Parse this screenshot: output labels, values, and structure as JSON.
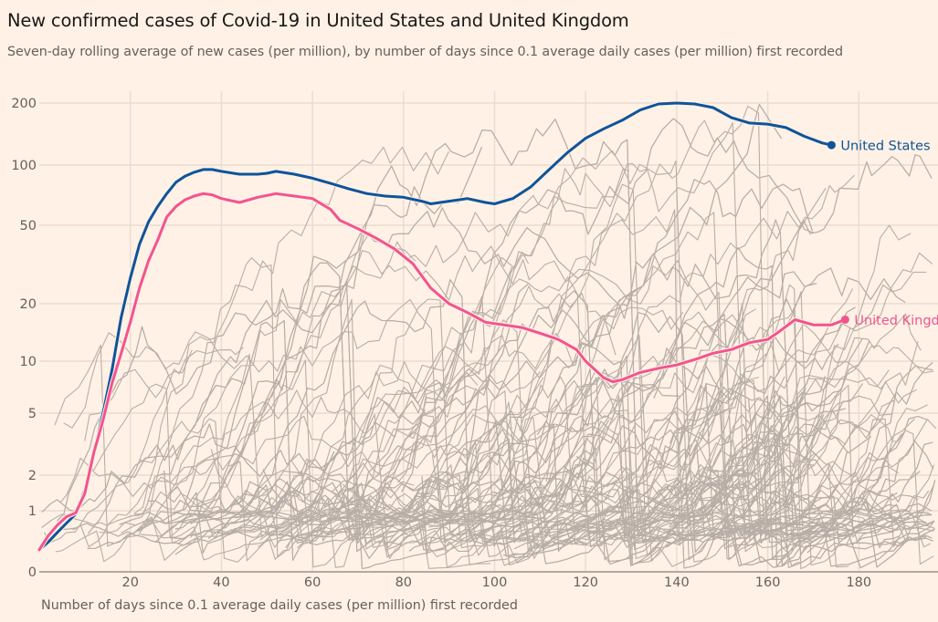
{
  "header": {
    "title": "New confirmed cases of Covid-19 in United States and United Kingdom",
    "subtitle": "Seven-day rolling average of new cases (per million), by number of days since 0.1 average daily cases (per million) first recorded"
  },
  "chart_data": {
    "type": "line",
    "title": "New confirmed cases of Covid-19 in United States and United Kingdom",
    "subtitle": "Seven-day rolling average of new cases (per million), by number of days since 0.1 average daily cases (per million) first recorded",
    "xlabel": "Number of days since 0.1 average daily cases (per million) first recorded",
    "ylabel": "",
    "y_scale": "log (with 0 at baseline)",
    "x_ticks": [
      20,
      40,
      60,
      80,
      100,
      120,
      140,
      160,
      180
    ],
    "y_ticks": [
      {
        "value": 0,
        "label": "0"
      },
      {
        "value": 1,
        "label": "1"
      },
      {
        "value": 2,
        "label": "2"
      },
      {
        "value": 5,
        "label": "5"
      },
      {
        "value": 10,
        "label": "10"
      },
      {
        "value": 20,
        "label": "20"
      },
      {
        "value": 50,
        "label": "50"
      },
      {
        "value": 100,
        "label": "100"
      },
      {
        "value": 200,
        "label": "200"
      }
    ],
    "xlim": [
      0,
      197
    ],
    "ylim": [
      0,
      200
    ],
    "grid": true,
    "legend": "direct labels at line ends (right)",
    "highlight_series": [
      {
        "name": "United States",
        "label": "United States",
        "color": "#0f5499",
        "x": [
          0,
          2,
          4,
          6,
          8,
          10,
          12,
          14,
          16,
          18,
          20,
          22,
          24,
          26,
          28,
          30,
          32,
          34,
          36,
          38,
          40,
          44,
          48,
          50,
          52,
          56,
          60,
          64,
          68,
          72,
          76,
          80,
          84,
          86,
          90,
          94,
          98,
          100,
          104,
          108,
          112,
          116,
          120,
          124,
          128,
          132,
          136,
          140,
          144,
          148,
          152,
          156,
          160,
          164,
          168,
          172,
          174
        ],
        "y": [
          0.15,
          0.22,
          0.35,
          0.55,
          0.85,
          1.5,
          2.8,
          5.0,
          9.0,
          17,
          27,
          40,
          52,
          62,
          72,
          82,
          88,
          92,
          95,
          95,
          93,
          90,
          90,
          91,
          93,
          90,
          86,
          81,
          76,
          72,
          70,
          69,
          66,
          64,
          66,
          68,
          65,
          64,
          68,
          78,
          95,
          115,
          135,
          150,
          165,
          185,
          198,
          200,
          198,
          190,
          170,
          160,
          158,
          152,
          138,
          128,
          125
        ]
      },
      {
        "name": "United Kingdom",
        "label": "United Kingdom",
        "color": "#f2548f",
        "x": [
          0,
          2,
          4,
          6,
          8,
          10,
          12,
          14,
          16,
          18,
          20,
          22,
          24,
          26,
          28,
          30,
          32,
          34,
          36,
          38,
          40,
          44,
          48,
          52,
          56,
          60,
          64,
          66,
          70,
          74,
          78,
          82,
          86,
          90,
          94,
          98,
          102,
          106,
          110,
          114,
          118,
          120,
          124,
          126,
          128,
          132,
          136,
          140,
          144,
          148,
          152,
          156,
          160,
          162,
          166,
          170,
          174,
          177
        ],
        "y": [
          0.15,
          0.3,
          0.5,
          0.75,
          0.9,
          1.4,
          2.8,
          4.5,
          7.5,
          11,
          16,
          24,
          33,
          42,
          55,
          62,
          67,
          70,
          72,
          71,
          68,
          65,
          69,
          72,
          70,
          68,
          60,
          53,
          48,
          43,
          38,
          32,
          24,
          20,
          18,
          16,
          15.5,
          15,
          14,
          13,
          11.5,
          10,
          8,
          7.6,
          7.8,
          8.6,
          9.1,
          9.5,
          10.2,
          11,
          11.5,
          12.5,
          13,
          14,
          16.5,
          15.5,
          15.5,
          16.5
        ]
      }
    ],
    "background_series_note": "Several hundred other countries shown as thin grey lines (#b7aea7); individual values not labeled"
  }
}
